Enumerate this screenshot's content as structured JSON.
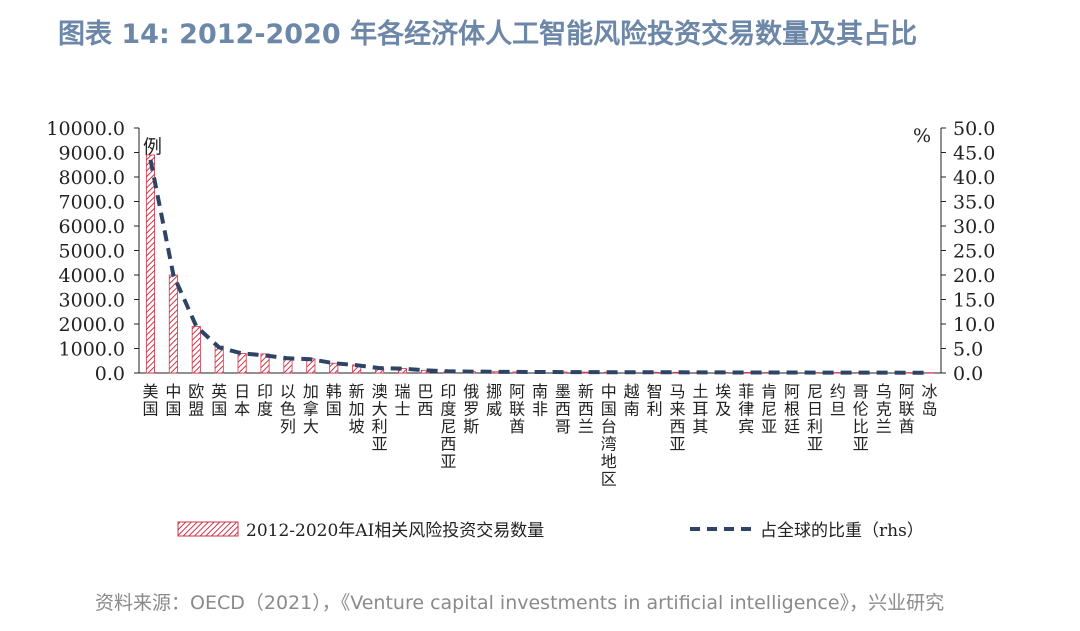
{
  "title": "图表 14: 2012-2020 年各经济体人工智能风险投资交易数量及其占比",
  "source": "资料来源：OECD（2021），《Venture capital investments in artificial intelligence》，兴业研究",
  "colors": {
    "bar_stroke": "#d0354a",
    "line": "#2e4466",
    "title": "#6d87a8"
  },
  "chart_data": {
    "type": "bar",
    "categories": [
      "美国",
      "中国",
      "欧盟",
      "英国",
      "日本",
      "印度",
      "以色列",
      "加拿大",
      "韩国",
      "新加坡",
      "澳大利亚",
      "瑞士",
      "巴西",
      "印度尼西亚",
      "俄罗斯",
      "挪威",
      "阿联酋",
      "南非",
      "墨西哥",
      "新西兰",
      "中国台湾地区",
      "越南",
      "智利",
      "马来西亚",
      "土耳其",
      "埃及",
      "菲律宾",
      "肯尼亚",
      "阿根廷",
      "尼日利亚",
      "约旦",
      "哥伦比亚",
      "乌克兰",
      "阿联酋",
      "冰岛"
    ],
    "series": [
      {
        "name": "2012-2020年AI相关风险投资交易数量",
        "type": "bar",
        "axis": "left",
        "values": [
          8900,
          4000,
          1900,
          1100,
          800,
          780,
          620,
          580,
          400,
          330,
          200,
          180,
          110,
          70,
          55,
          50,
          45,
          40,
          38,
          36,
          34,
          32,
          30,
          28,
          26,
          24,
          22,
          21,
          20,
          19,
          18,
          17,
          16,
          15,
          14
        ]
      },
      {
        "name": "占全球的比重（rhs）",
        "type": "line",
        "axis": "right",
        "values": [
          43.5,
          20.0,
          9.5,
          5.2,
          4.0,
          3.6,
          3.0,
          2.8,
          2.0,
          1.6,
          1.0,
          0.9,
          0.55,
          0.35,
          0.28,
          0.25,
          0.22,
          0.2,
          0.19,
          0.18,
          0.17,
          0.16,
          0.15,
          0.14,
          0.13,
          0.12,
          0.11,
          0.1,
          0.1,
          0.09,
          0.09,
          0.08,
          0.08,
          0.07,
          0.07
        ]
      }
    ],
    "y_left": {
      "ylim": [
        0,
        10000
      ],
      "ticks": [
        "0.0",
        "1000.0",
        "2000.0",
        "3000.0",
        "4000.0",
        "5000.0",
        "6000.0",
        "7000.0",
        "8000.0",
        "9000.0",
        "10000.0"
      ],
      "unit_label": "例"
    },
    "y_right": {
      "ylim": [
        0,
        50
      ],
      "ticks": [
        "0.0",
        "5.0",
        "10.0",
        "15.0",
        "20.0",
        "25.0",
        "30.0",
        "35.0",
        "40.0",
        "45.0",
        "50.0"
      ],
      "unit_label": "%"
    },
    "legend_position": "bottom",
    "grid": false
  }
}
